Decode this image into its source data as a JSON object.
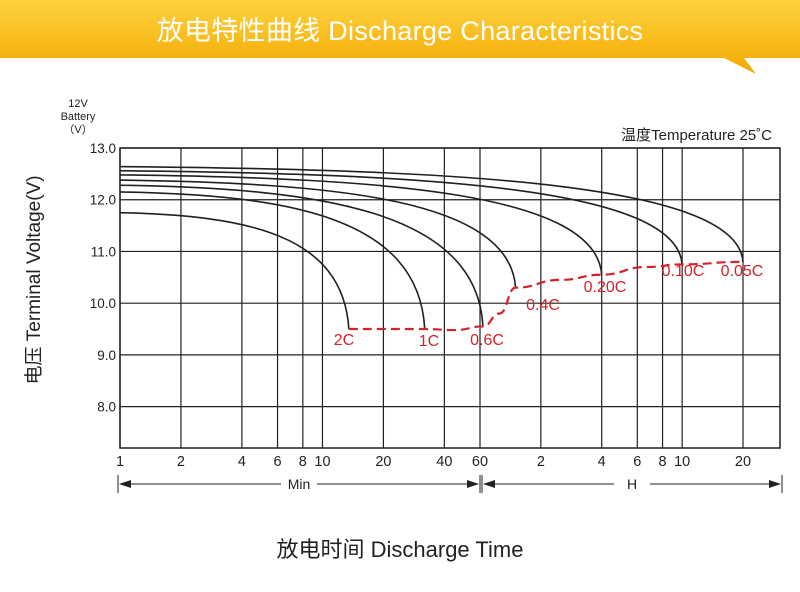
{
  "title": "放电特性曲线 Discharge Characteristics",
  "colors": {
    "banner": "#f5b800",
    "banner_light": "#ffd23f",
    "curve": "#231f20",
    "cutoff": "#d4222a",
    "grid": "#231f20"
  },
  "chart_data": {
    "type": "line",
    "title": "放电特性曲线 Discharge Characteristics",
    "xlabel": "放电时间 Discharge Time",
    "ylabel": "电压 Terminal Voltage(V)",
    "battery_label": [
      "12V",
      "Battery",
      "（V）"
    ],
    "temperature_note": "温度Temperature 25˚C",
    "x_ticks": [
      "1",
      "2",
      "4",
      "6",
      "8",
      "10",
      "20",
      "40",
      "60",
      "2",
      "4",
      "6",
      "8",
      "10",
      "20"
    ],
    "x_scale": "log",
    "x_sections": [
      {
        "label": "Min",
        "from_minutes": 1,
        "to_minutes": 60
      },
      {
        "label": "H",
        "from_minutes": 60,
        "to_minutes": 1200
      }
    ],
    "y_ticks": [
      "13.0",
      "12.0",
      "11.0",
      "10.0",
      "9.0",
      "8.0"
    ],
    "ylim": [
      7.2,
      13.0
    ],
    "grid": true,
    "series": [
      {
        "name": "2C",
        "start_v": 11.75,
        "end_minutes": 13.5,
        "end_v": 9.5
      },
      {
        "name": "1C",
        "start_v": 12.15,
        "end_minutes": 32,
        "end_v": 9.5
      },
      {
        "name": "0.6C",
        "start_v": 12.28,
        "end_minutes": 62,
        "end_v": 9.55
      },
      {
        "name": "0.4C",
        "start_v": 12.38,
        "end_minutes": 90,
        "end_v": 10.3
      },
      {
        "name": "0.20C",
        "start_v": 12.48,
        "end_minutes": 240,
        "end_v": 10.55
      },
      {
        "name": "0.10C",
        "start_v": 12.56,
        "end_minutes": 600,
        "end_v": 10.75
      },
      {
        "name": "0.05C",
        "start_v": 12.64,
        "end_minutes": 1200,
        "end_v": 10.8
      }
    ],
    "cutoff_line": {
      "x_minutes": [
        13.5,
        20,
        32,
        45,
        62,
        75,
        90,
        150,
        240,
        400,
        600,
        1200
      ],
      "y": [
        9.5,
        9.5,
        9.5,
        9.48,
        9.55,
        9.8,
        10.3,
        10.45,
        10.55,
        10.7,
        10.75,
        10.8
      ]
    }
  }
}
